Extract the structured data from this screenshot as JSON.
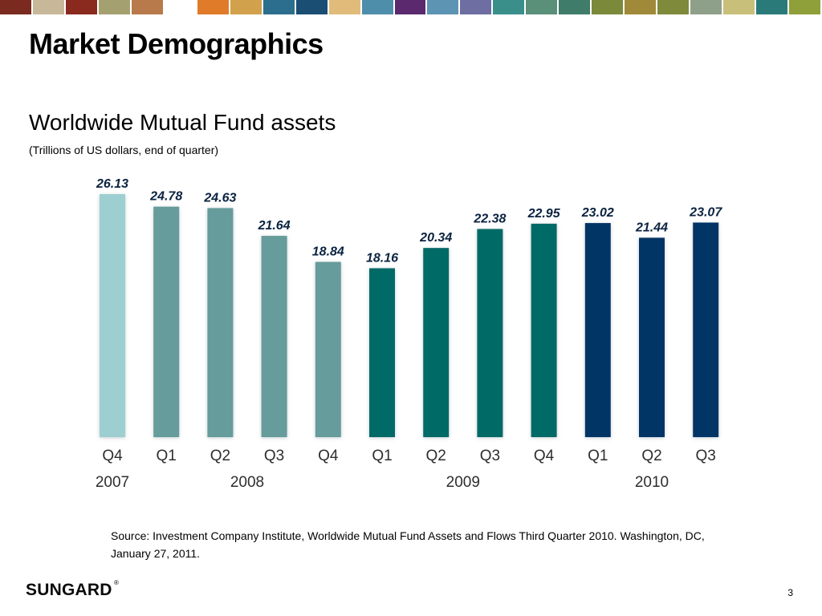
{
  "slide": {
    "title": "Market Demographics",
    "chart_heading": "Worldwide Mutual Fund assets",
    "chart_note": "(Trillions of US dollars, end of quarter)",
    "source": "Source:  Investment Company Institute, Worldwide Mutual Fund Assets and Flows Third Quarter 2010.  Washington, DC, January 27, 2011.",
    "logo_text": "SUNGARD",
    "logo_mark": "®",
    "page_number": "3",
    "top_strip_colors": [
      "#7a2a1e",
      "#c8b89a",
      "#8a2a1e",
      "#a5a070",
      "#b87a4a",
      "#ffffff",
      "#e07b2a",
      "#d1a14b",
      "#2c6e8e",
      "#1b4e73",
      "#e0bb7a",
      "#4f8eaa",
      "#5b2a6e",
      "#5e94b3",
      "#6e6ea3",
      "#3a8f8a",
      "#5a8f7a",
      "#3f7c6a",
      "#7a8a3a",
      "#a08a3a",
      "#7f8a3a",
      "#8fa08a",
      "#c8c07a",
      "#2a7a7a",
      "#8fa03a"
    ]
  },
  "chart_data": {
    "type": "bar",
    "categories": [
      "Q4",
      "Q1",
      "Q2",
      "Q3",
      "Q4",
      "Q1",
      "Q2",
      "Q3",
      "Q4",
      "Q1",
      "Q2",
      "Q3"
    ],
    "values": [
      26.13,
      24.78,
      24.63,
      21.64,
      18.84,
      18.16,
      20.34,
      22.38,
      22.95,
      23.02,
      21.44,
      23.07
    ],
    "value_labels": [
      "26.13",
      "24.78",
      "24.63",
      "21.64",
      "18.84",
      "18.16",
      "20.34",
      "22.38",
      "22.95",
      "23.02",
      "21.44",
      "23.07"
    ],
    "years": [
      {
        "label": "2007",
        "start": 0,
        "end": 0
      },
      {
        "label": "2008",
        "start": 1,
        "end": 4
      },
      {
        "label": "2009",
        "start": 5,
        "end": 8
      },
      {
        "label": "2010",
        "start": 9,
        "end": 11
      }
    ],
    "bar_colors": [
      "#9dcfd1",
      "#669c9b",
      "#669c9b",
      "#669c9b",
      "#669c9b",
      "#006a66",
      "#006a66",
      "#006a66",
      "#006a66",
      "#003466",
      "#003466",
      "#003466"
    ],
    "label_color": "#0b2340",
    "title": "",
    "xlabel": "",
    "ylabel": "",
    "ylim": [
      0,
      26.13
    ],
    "grid": false,
    "legend": "none"
  }
}
